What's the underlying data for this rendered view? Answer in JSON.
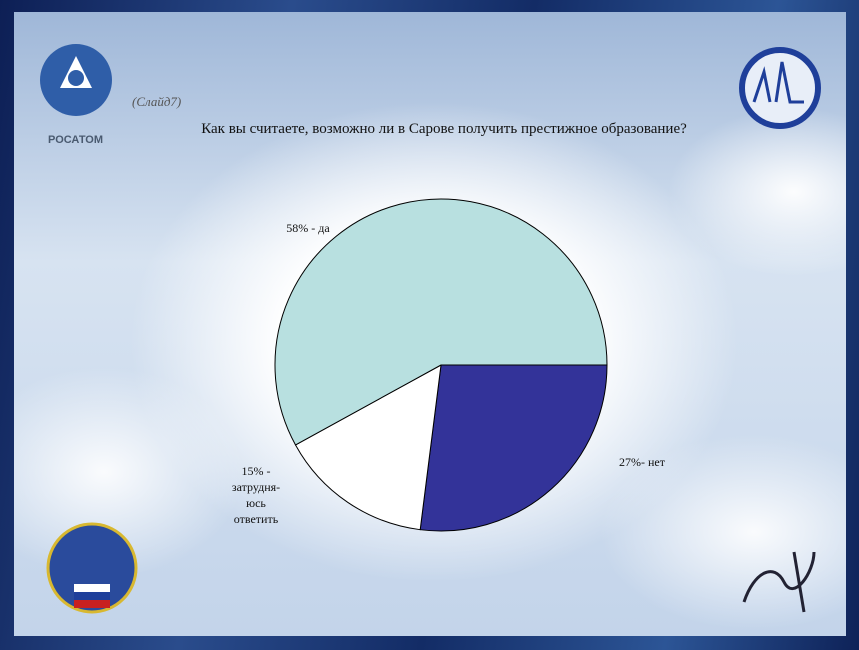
{
  "slide_label": "(Слайд7)",
  "logo_text": "РОСАТОМ",
  "chart_data": {
    "type": "pie",
    "title": "Как вы считаете, возможно ли в Сарове получить престижное образование?",
    "values": [
      27,
      15,
      58
    ],
    "value_labels": [
      "27%- нет",
      "15% -\nзатрудня-\nюсь\nответить",
      "58% - да"
    ],
    "colors": [
      "#333399",
      "#ffffff",
      "#b8e0e0"
    ]
  }
}
